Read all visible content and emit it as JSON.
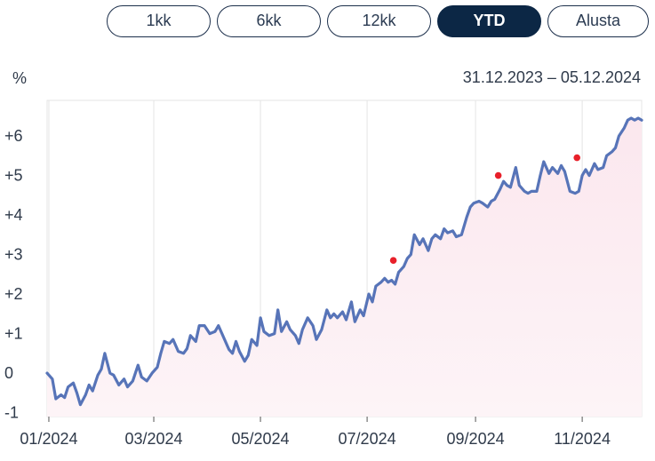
{
  "range_buttons": [
    {
      "label": "1kk",
      "active": false
    },
    {
      "label": "6kk",
      "active": false
    },
    {
      "label": "12kk",
      "active": false
    },
    {
      "label": "YTD",
      "active": true
    },
    {
      "label": "Alusta",
      "active": false
    }
  ],
  "unit_label": "%",
  "date_range": "31.12.2023 – 05.12.2024",
  "colors": {
    "line": "#5774b8",
    "area_top": "#fbe7ee",
    "area_bottom": "#fdf4f7",
    "grid": "#e4e4e4",
    "marker": "#e8202a",
    "active_button": "#0c2745"
  },
  "chart_data": {
    "type": "line",
    "title": "",
    "xlabel": "",
    "ylabel": "%",
    "ylim": [
      -1.1,
      6.9
    ],
    "xlim": [
      "2023-12-31",
      "2024-12-05"
    ],
    "grid": true,
    "y_ticks": [
      {
        "value": 6,
        "label": "+6"
      },
      {
        "value": 5,
        "label": "+5"
      },
      {
        "value": 4,
        "label": "+4"
      },
      {
        "value": 3,
        "label": "+3"
      },
      {
        "value": 2,
        "label": "+2"
      },
      {
        "value": 1,
        "label": "+1"
      },
      {
        "value": 0,
        "label": "0"
      },
      {
        "value": -1,
        "label": "-1"
      }
    ],
    "x_ticks": [
      {
        "date": "2024-01-01",
        "label": "01/2024"
      },
      {
        "date": "2024-03-01",
        "label": "03/2024"
      },
      {
        "date": "2024-05-01",
        "label": "05/2024"
      },
      {
        "date": "2024-07-01",
        "label": "07/2024"
      },
      {
        "date": "2024-09-01",
        "label": "09/2024"
      },
      {
        "date": "2024-11-01",
        "label": "11/2024"
      }
    ],
    "series": [
      {
        "points": [
          [
            "2023-12-31",
            0.0
          ],
          [
            "2024-01-03",
            -0.15
          ],
          [
            "2024-01-05",
            -0.65
          ],
          [
            "2024-01-08",
            -0.55
          ],
          [
            "2024-01-10",
            -0.62
          ],
          [
            "2024-01-12",
            -0.35
          ],
          [
            "2024-01-15",
            -0.25
          ],
          [
            "2024-01-17",
            -0.5
          ],
          [
            "2024-01-19",
            -0.8
          ],
          [
            "2024-01-22",
            -0.55
          ],
          [
            "2024-01-24",
            -0.3
          ],
          [
            "2024-01-26",
            -0.45
          ],
          [
            "2024-01-29",
            -0.05
          ],
          [
            "2024-01-31",
            0.1
          ],
          [
            "2024-02-02",
            0.5
          ],
          [
            "2024-02-05",
            0.0
          ],
          [
            "2024-02-07",
            -0.05
          ],
          [
            "2024-02-10",
            -0.3
          ],
          [
            "2024-02-13",
            -0.15
          ],
          [
            "2024-02-15",
            -0.35
          ],
          [
            "2024-02-18",
            -0.2
          ],
          [
            "2024-02-21",
            0.2
          ],
          [
            "2024-02-23",
            -0.1
          ],
          [
            "2024-02-26",
            -0.2
          ],
          [
            "2024-02-29",
            0.0
          ],
          [
            "2024-03-03",
            0.15
          ],
          [
            "2024-03-05",
            0.5
          ],
          [
            "2024-03-07",
            0.8
          ],
          [
            "2024-03-10",
            0.75
          ],
          [
            "2024-03-12",
            0.85
          ],
          [
            "2024-03-15",
            0.55
          ],
          [
            "2024-03-18",
            0.5
          ],
          [
            "2024-03-20",
            0.62
          ],
          [
            "2024-03-22",
            0.95
          ],
          [
            "2024-03-25",
            0.8
          ],
          [
            "2024-03-27",
            1.2
          ],
          [
            "2024-03-30",
            1.2
          ],
          [
            "2024-04-02",
            1.0
          ],
          [
            "2024-04-05",
            1.05
          ],
          [
            "2024-04-07",
            1.2
          ],
          [
            "2024-04-10",
            0.9
          ],
          [
            "2024-04-13",
            0.6
          ],
          [
            "2024-04-15",
            0.5
          ],
          [
            "2024-04-17",
            0.8
          ],
          [
            "2024-04-19",
            0.55
          ],
          [
            "2024-04-22",
            0.3
          ],
          [
            "2024-04-24",
            0.45
          ],
          [
            "2024-04-26",
            0.85
          ],
          [
            "2024-04-29",
            0.7
          ],
          [
            "2024-05-01",
            1.4
          ],
          [
            "2024-05-03",
            1.05
          ],
          [
            "2024-05-06",
            0.95
          ],
          [
            "2024-05-09",
            1.0
          ],
          [
            "2024-05-11",
            1.6
          ],
          [
            "2024-05-13",
            1.05
          ],
          [
            "2024-05-16",
            1.3
          ],
          [
            "2024-05-18",
            1.1
          ],
          [
            "2024-05-21",
            0.95
          ],
          [
            "2024-05-23",
            0.75
          ],
          [
            "2024-05-25",
            1.1
          ],
          [
            "2024-05-28",
            1.4
          ],
          [
            "2024-05-31",
            1.2
          ],
          [
            "2024-06-02",
            0.85
          ],
          [
            "2024-06-05",
            1.1
          ],
          [
            "2024-06-08",
            1.6
          ],
          [
            "2024-06-10",
            1.4
          ],
          [
            "2024-06-12",
            1.5
          ],
          [
            "2024-06-14",
            1.4
          ],
          [
            "2024-06-17",
            1.55
          ],
          [
            "2024-06-19",
            1.35
          ],
          [
            "2024-06-22",
            1.8
          ],
          [
            "2024-06-24",
            1.3
          ],
          [
            "2024-06-27",
            1.6
          ],
          [
            "2024-06-29",
            1.45
          ],
          [
            "2024-07-02",
            2.0
          ],
          [
            "2024-07-04",
            1.8
          ],
          [
            "2024-07-06",
            2.2
          ],
          [
            "2024-07-09",
            2.3
          ],
          [
            "2024-07-11",
            2.4
          ],
          [
            "2024-07-13",
            2.3
          ],
          [
            "2024-07-15",
            2.35
          ],
          [
            "2024-07-17",
            2.25
          ],
          [
            "2024-07-19",
            2.55
          ],
          [
            "2024-07-22",
            2.7
          ],
          [
            "2024-07-24",
            2.9
          ],
          [
            "2024-07-26",
            3.0
          ],
          [
            "2024-07-28",
            3.5
          ],
          [
            "2024-07-31",
            3.25
          ],
          [
            "2024-08-02",
            3.4
          ],
          [
            "2024-08-05",
            3.1
          ],
          [
            "2024-08-07",
            3.4
          ],
          [
            "2024-08-09",
            3.5
          ],
          [
            "2024-08-12",
            3.4
          ],
          [
            "2024-08-14",
            3.65
          ],
          [
            "2024-08-16",
            3.55
          ],
          [
            "2024-08-19",
            3.6
          ],
          [
            "2024-08-21",
            3.45
          ],
          [
            "2024-08-24",
            3.5
          ],
          [
            "2024-08-27",
            3.95
          ],
          [
            "2024-08-29",
            4.2
          ],
          [
            "2024-08-31",
            4.3
          ],
          [
            "2024-09-03",
            4.35
          ],
          [
            "2024-09-05",
            4.3
          ],
          [
            "2024-09-08",
            4.2
          ],
          [
            "2024-09-10",
            4.35
          ],
          [
            "2024-09-12",
            4.4
          ],
          [
            "2024-09-15",
            4.65
          ],
          [
            "2024-09-17",
            4.85
          ],
          [
            "2024-09-19",
            4.75
          ],
          [
            "2024-09-21",
            4.7
          ],
          [
            "2024-09-24",
            5.2
          ],
          [
            "2024-09-26",
            4.75
          ],
          [
            "2024-09-29",
            4.6
          ],
          [
            "2024-10-01",
            4.55
          ],
          [
            "2024-10-03",
            4.6
          ],
          [
            "2024-10-06",
            4.6
          ],
          [
            "2024-10-08",
            5.0
          ],
          [
            "2024-10-10",
            5.35
          ],
          [
            "2024-10-13",
            5.05
          ],
          [
            "2024-10-15",
            5.2
          ],
          [
            "2024-10-18",
            5.05
          ],
          [
            "2024-10-20",
            5.25
          ],
          [
            "2024-10-22",
            5.1
          ],
          [
            "2024-10-25",
            4.6
          ],
          [
            "2024-10-28",
            4.55
          ],
          [
            "2024-10-30",
            4.6
          ],
          [
            "2024-11-01",
            5.0
          ],
          [
            "2024-11-03",
            5.15
          ],
          [
            "2024-11-05",
            5.0
          ],
          [
            "2024-11-08",
            5.3
          ],
          [
            "2024-11-10",
            5.15
          ],
          [
            "2024-11-13",
            5.2
          ],
          [
            "2024-11-15",
            5.5
          ],
          [
            "2024-11-18",
            5.6
          ],
          [
            "2024-11-20",
            5.7
          ],
          [
            "2024-11-22",
            6.0
          ],
          [
            "2024-11-25",
            6.2
          ],
          [
            "2024-11-27",
            6.4
          ],
          [
            "2024-11-29",
            6.45
          ],
          [
            "2024-12-01",
            6.4
          ],
          [
            "2024-12-03",
            6.45
          ],
          [
            "2024-12-05",
            6.4
          ]
        ]
      }
    ],
    "markers": [
      {
        "date": "2024-07-16",
        "value": 2.85
      },
      {
        "date": "2024-09-14",
        "value": 5.0
      },
      {
        "date": "2024-10-29",
        "value": 5.45
      }
    ]
  }
}
